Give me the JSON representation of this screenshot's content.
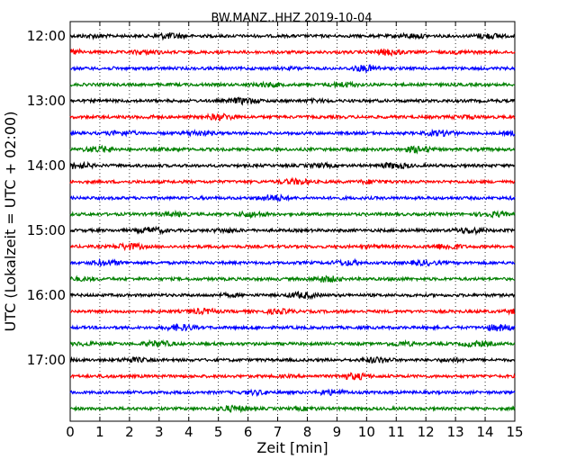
{
  "chart_data": {
    "type": "line",
    "title": "BW.MANZ..HHZ 2019-10-04",
    "xlabel": "Zeit  [min]",
    "ylabel": "UTC (Lokalzeit = UTC + 02:00)",
    "xlim": [
      0,
      15
    ],
    "x_ticks": [
      "0",
      "1",
      "2",
      "3",
      "4",
      "5",
      "6",
      "7",
      "8",
      "9",
      "10",
      "11",
      "12",
      "13",
      "14",
      "15"
    ],
    "y_tick_labels": [
      "12:00",
      "13:00",
      "14:00",
      "15:00",
      "16:00",
      "17:00"
    ],
    "grid": "vertical dotted lines at each minute",
    "trace_interval_min": 15,
    "first_trace": "12:00",
    "trace_count": 24,
    "trace_colors": [
      "#000000",
      "#ff0000",
      "#0000ff",
      "#008000"
    ],
    "traces_per_label": 4
  }
}
